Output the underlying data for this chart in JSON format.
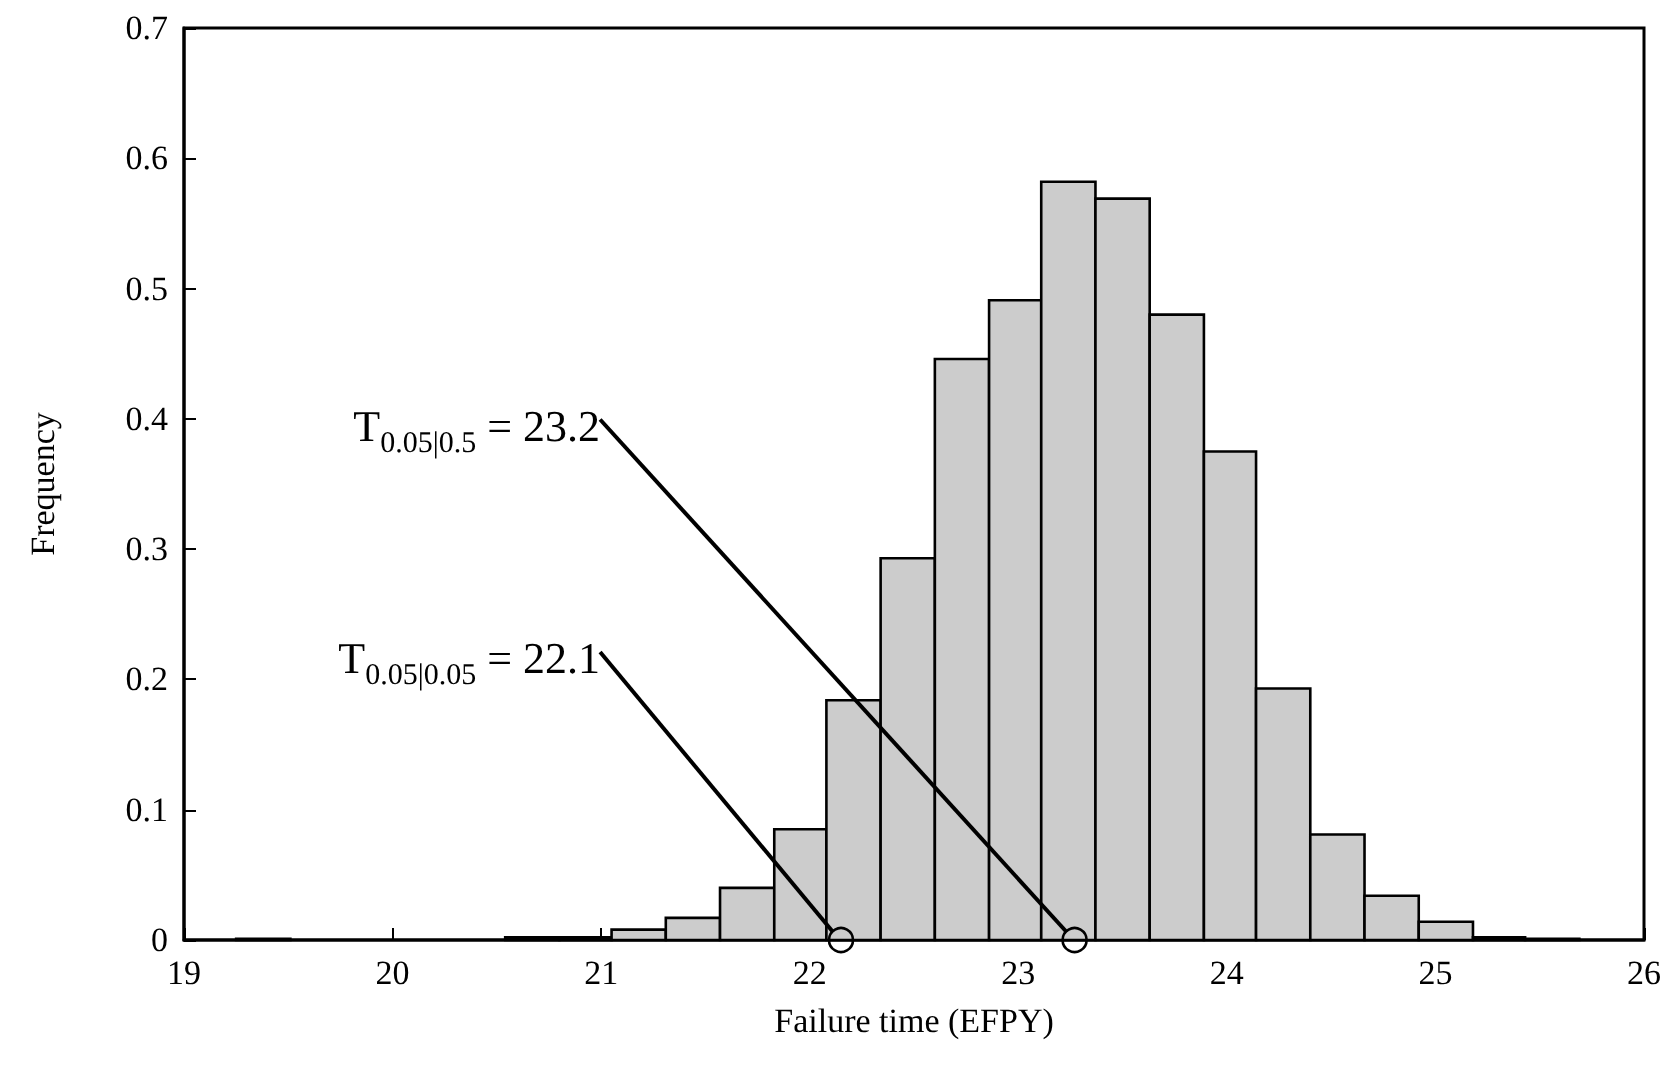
{
  "chart_data": {
    "type": "histogram",
    "bins": [
      19.25,
      19.51,
      20.54,
      20.8,
      21.05,
      21.31,
      21.57,
      21.83,
      22.08,
      22.34,
      22.6,
      22.86,
      23.11,
      23.37,
      23.63,
      23.89,
      24.14,
      24.4,
      24.66,
      24.92,
      25.18,
      25.43,
      25.69
    ],
    "values": [
      0.001,
      0,
      0.002,
      0.002,
      0.008,
      0.017,
      0.04,
      0.085,
      0.184,
      0.293,
      0.446,
      0.491,
      0.582,
      0.569,
      0.48,
      0.375,
      0.193,
      0.081,
      0.034,
      0.014,
      0.002,
      0.001
    ],
    "color": "#cccccc",
    "xlabel": "Failure time (EFPY)",
    "ylabel": "Frequency",
    "xlim": [
      19,
      26
    ],
    "xticks": [
      19,
      20,
      21,
      22,
      23,
      24,
      25,
      26
    ],
    "ylim": [
      0,
      0.7
    ],
    "yticks": [
      0,
      0.1,
      0.2,
      0.3,
      0.4,
      0.5,
      0.6,
      0.7
    ],
    "annotations": [
      {
        "text": "T$_{0.05|0.5}$ = 23.2",
        "x": 23.27,
        "y": 0
      },
      {
        "text": "T$_{0.05|0.05}$ = 22.1",
        "x": 22.15,
        "y": 0
      }
    ]
  }
}
